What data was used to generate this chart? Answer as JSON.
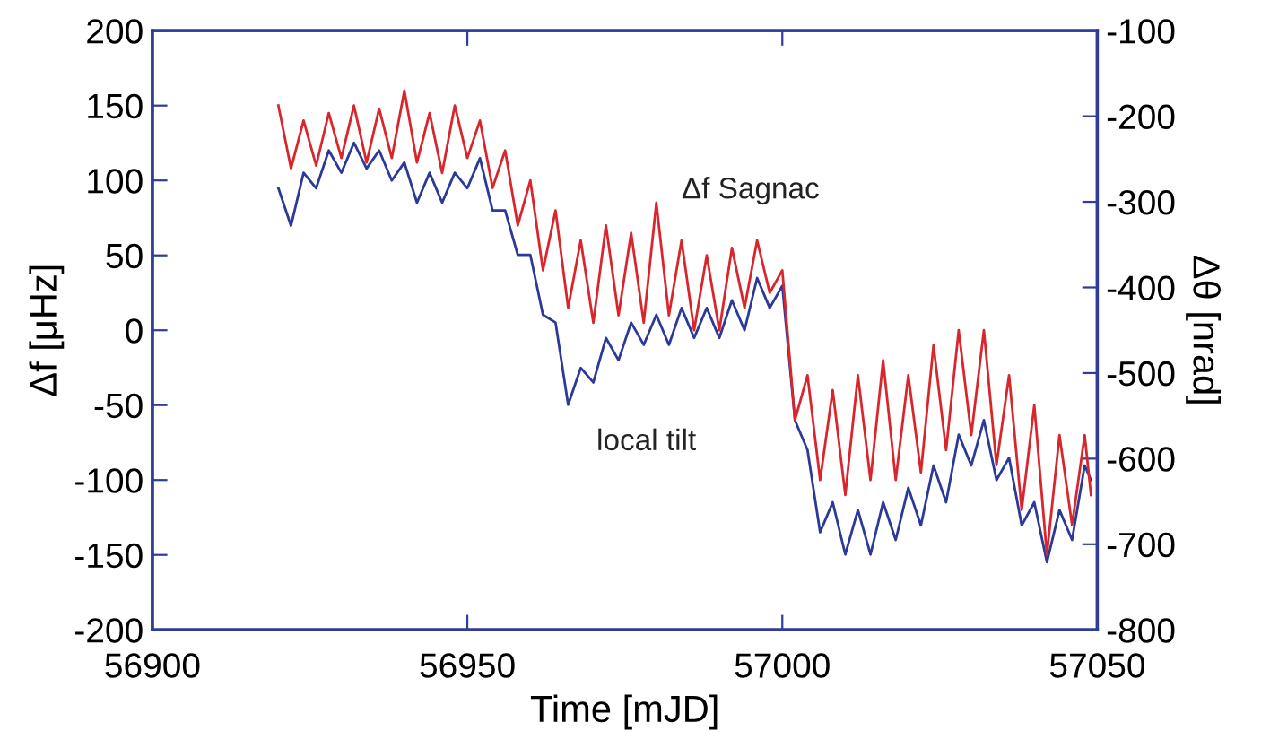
{
  "chart_data": {
    "type": "line",
    "xlabel": "Time [mJD]",
    "ylabel": "Δf [μHz]",
    "y2label": "Δθ [nrad]",
    "xlim": [
      56900,
      57050
    ],
    "xticks": [
      56900,
      56950,
      57000,
      57050
    ],
    "ylim": [
      -200,
      200
    ],
    "yticks": [
      -200,
      -150,
      -100,
      -50,
      0,
      50,
      100,
      150,
      200
    ],
    "y2lim": [
      -800,
      -100
    ],
    "y2ticks": [
      -800,
      -700,
      -600,
      -500,
      -400,
      -300,
      -200,
      -100
    ],
    "grid": false,
    "legend": false,
    "marker": "none",
    "line_style": "solid",
    "x": [
      56920,
      56922,
      56924,
      56926,
      56928,
      56930,
      56932,
      56934,
      56936,
      56938,
      56940,
      56942,
      56944,
      56946,
      56948,
      56950,
      56952,
      56954,
      56956,
      56958,
      56960,
      56962,
      56964,
      56966,
      56968,
      56970,
      56972,
      56974,
      56976,
      56978,
      56980,
      56982,
      56984,
      56986,
      56988,
      56990,
      56992,
      56994,
      56996,
      56998,
      57000,
      57002,
      57004,
      57006,
      57008,
      57010,
      57012,
      57014,
      57016,
      57018,
      57020,
      57022,
      57024,
      57026,
      57028,
      57030,
      57032,
      57034,
      57036,
      57038,
      57040,
      57042,
      57044,
      57046,
      57048,
      57049
    ],
    "series": [
      {
        "name": "local tilt",
        "color": "#2b3a98",
        "axis": "y2",
        "values": [
          -284,
          -328,
          -266,
          -284,
          -240,
          -266,
          -231,
          -261,
          -240,
          -275,
          -254,
          -301,
          -266,
          -301,
          -266,
          -284,
          -249,
          -310,
          -310,
          -362,
          -362,
          -432,
          -441,
          -537,
          -494,
          -511,
          -459,
          -485,
          -441,
          -467,
          -432,
          -467,
          -424,
          -459,
          -424,
          -459,
          -415,
          -450,
          -389,
          -424,
          -398,
          -555,
          -590,
          -686,
          -651,
          -712,
          -660,
          -712,
          -651,
          -695,
          -634,
          -678,
          -608,
          -651,
          -572,
          -608,
          -555,
          -625,
          -599,
          -678,
          -651,
          -721,
          -660,
          -695,
          -608,
          -625
        ]
      },
      {
        "name": "Δf Sagnac",
        "color": "#d9262c",
        "values": [
          150,
          108,
          140,
          110,
          145,
          115,
          150,
          112,
          148,
          115,
          160,
          112,
          145,
          105,
          150,
          115,
          140,
          95,
          120,
          70,
          100,
          40,
          80,
          15,
          60,
          5,
          70,
          10,
          65,
          5,
          85,
          10,
          60,
          0,
          50,
          0,
          55,
          15,
          60,
          25,
          40,
          -60,
          -30,
          -100,
          -40,
          -110,
          -30,
          -100,
          -20,
          -100,
          -30,
          -95,
          -10,
          -80,
          0,
          -70,
          0,
          -90,
          -30,
          -120,
          -50,
          -150,
          -70,
          -130,
          -70,
          -110
        ]
      }
    ]
  }
}
